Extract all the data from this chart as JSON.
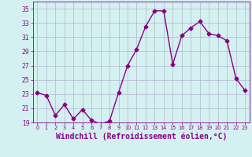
{
  "x": [
    0,
    1,
    2,
    3,
    4,
    5,
    6,
    7,
    8,
    9,
    10,
    11,
    12,
    13,
    14,
    15,
    16,
    17,
    18,
    19,
    20,
    21,
    22,
    23
  ],
  "y": [
    23.2,
    22.8,
    20.0,
    21.5,
    19.5,
    20.8,
    19.3,
    18.8,
    19.2,
    23.2,
    27.0,
    29.3,
    32.5,
    34.7,
    34.7,
    27.2,
    31.2,
    32.3,
    33.2,
    31.5,
    31.2,
    30.5,
    25.2,
    23.5
  ],
  "line_color": "#880088",
  "marker": "D",
  "marker_size": 2.5,
  "xlabel": "Windchill (Refroidissement éolien,°C)",
  "xlabel_fontsize": 7.0,
  "ylim": [
    19,
    36
  ],
  "xlim": [
    -0.5,
    23.5
  ],
  "yticks": [
    19,
    21,
    23,
    25,
    27,
    29,
    31,
    33,
    35
  ],
  "xticks": [
    0,
    1,
    2,
    3,
    4,
    5,
    6,
    7,
    8,
    9,
    10,
    11,
    12,
    13,
    14,
    15,
    16,
    17,
    18,
    19,
    20,
    21,
    22,
    23
  ],
  "bg_color": "#d4f0f0",
  "grid_color": "#b0b8cc",
  "tick_color": "#880088",
  "axis_color": "#880088",
  "line_width": 1.0
}
